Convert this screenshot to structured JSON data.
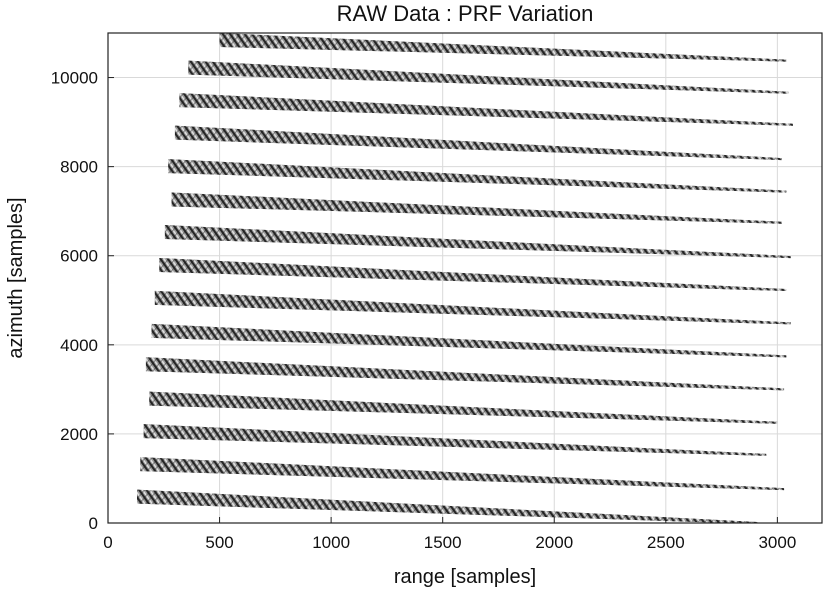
{
  "chart_data": {
    "type": "scatter",
    "title": "RAW Data : PRF Variation",
    "xlabel": "range [samples]",
    "ylabel": "azimuth [samples]",
    "xlim": [
      0,
      3200
    ],
    "ylim": [
      0,
      11000
    ],
    "x_ticks": [
      0,
      500,
      1000,
      1500,
      2000,
      2500,
      3000
    ],
    "y_ticks": [
      0,
      2000,
      4000,
      6000,
      8000,
      10000
    ],
    "grid": true,
    "legend": "none",
    "colors": {
      "band": "#9a9a9a",
      "fringe_dark": "#111111",
      "fringe_light": "#f2f2f2",
      "grid": "#d9d9d9"
    },
    "series": [
      {
        "values": [
          [
            130,
            750
          ],
          [
            2910,
            0
          ]
        ]
      },
      {
        "values": [
          [
            145,
            1480
          ],
          [
            3030,
            760
          ]
        ]
      },
      {
        "values": [
          [
            160,
            2220
          ],
          [
            2950,
            1530
          ]
        ]
      },
      {
        "values": [
          [
            185,
            2950
          ],
          [
            3000,
            2250
          ]
        ]
      },
      {
        "values": [
          [
            170,
            3720
          ],
          [
            3030,
            3000
          ]
        ]
      },
      {
        "values": [
          [
            195,
            4470
          ],
          [
            3040,
            3740
          ]
        ]
      },
      {
        "values": [
          [
            210,
            5210
          ],
          [
            3060,
            4480
          ]
        ]
      },
      {
        "values": [
          [
            230,
            5950
          ],
          [
            3040,
            5230
          ]
        ]
      },
      {
        "values": [
          [
            255,
            6690
          ],
          [
            3060,
            5970
          ]
        ]
      },
      {
        "values": [
          [
            285,
            7420
          ],
          [
            3020,
            6740
          ]
        ]
      },
      {
        "values": [
          [
            270,
            8170
          ],
          [
            3040,
            7440
          ]
        ]
      },
      {
        "values": [
          [
            300,
            8920
          ],
          [
            3020,
            8170
          ]
        ]
      },
      {
        "values": [
          [
            320,
            9650
          ],
          [
            3070,
            8940
          ]
        ]
      },
      {
        "values": [
          [
            360,
            10380
          ],
          [
            3050,
            9660
          ]
        ]
      },
      {
        "values": [
          [
            500,
            11000
          ],
          [
            3040,
            10380
          ]
        ]
      }
    ]
  }
}
